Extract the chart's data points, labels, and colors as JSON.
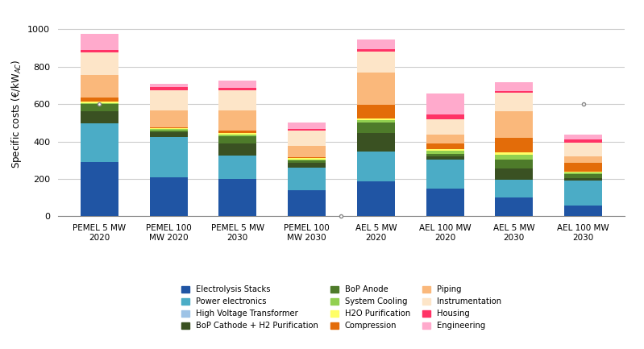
{
  "categories": [
    "PEMEL 5 MW\n2020",
    "PEMEL 100\nMW 2020",
    "PEMEL 5 MW\n2030",
    "PEMEL 100\nMW 2030",
    "AEL 5 MW\n2020",
    "AEL 100 MW\n2020",
    "AEL 5 MW\n2030",
    "AEL 100 MW\n2030"
  ],
  "components": [
    "Electrolysis Stacks",
    "Power electronics",
    "High Voltage Transformer",
    "BoP Cathode + H2 Purification",
    "BoP Anode",
    "System Cooling",
    "H2O Purification",
    "Compression",
    "Piping",
    "Instrumentation",
    "Housing",
    "Engineering"
  ],
  "colors": [
    "#2055A4",
    "#4BACC6",
    "#9DC3E6",
    "#3A5122",
    "#4E7B2A",
    "#92D050",
    "#FFFF66",
    "#E36C09",
    "#FAB87B",
    "#FDE5C8",
    "#FF3366",
    "#FFAACC"
  ],
  "values": {
    "PEMEL 5 MW\n2020": [
      290,
      205,
      0,
      65,
      40,
      5,
      10,
      20,
      120,
      120,
      15,
      85
    ],
    "PEMEL 100\nMW 2020": [
      210,
      215,
      0,
      25,
      10,
      5,
      5,
      5,
      90,
      110,
      15,
      20
    ],
    "PEMEL 5 MW\n2030": [
      200,
      125,
      0,
      65,
      40,
      5,
      10,
      15,
      105,
      110,
      10,
      40
    ],
    "PEMEL 100\nMW 2030": [
      140,
      120,
      0,
      25,
      15,
      5,
      5,
      5,
      60,
      85,
      5,
      35
    ],
    "AEL 5 MW\n2020": [
      185,
      160,
      0,
      100,
      55,
      15,
      10,
      70,
      175,
      110,
      15,
      50
    ],
    "AEL 100 MW\n2020": [
      150,
      155,
      0,
      15,
      15,
      15,
      10,
      30,
      45,
      85,
      25,
      110
    ],
    "AEL 5 MW\n2030": [
      100,
      95,
      0,
      60,
      50,
      25,
      10,
      80,
      140,
      100,
      10,
      45
    ],
    "AEL 100 MW\n2030": [
      60,
      130,
      0,
      15,
      20,
      10,
      5,
      45,
      35,
      75,
      15,
      25
    ]
  },
  "ylabel": "Specific costs (€/kW$_{AC}$)",
  "ylim": [
    0,
    1100
  ],
  "yticks": [
    0,
    200,
    400,
    600,
    800,
    1000
  ],
  "background_color": "#FFFFFF",
  "grid_color": "#CCCCCC",
  "bar_width": 0.55
}
